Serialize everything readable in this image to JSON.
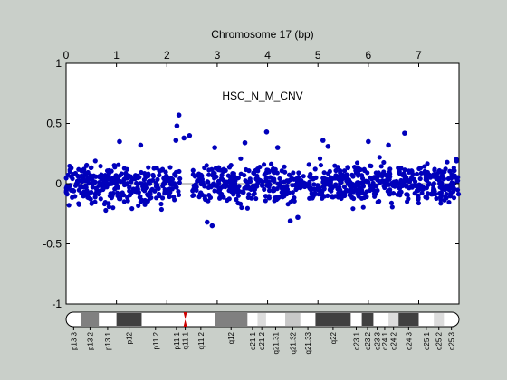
{
  "chart_data": {
    "type": "scatter",
    "title": "Chromosome 17 (bp)",
    "annotation": "HSC_N_M_CNV",
    "xlabel": "",
    "ylabel": "",
    "xlim": [
      0,
      7.8
    ],
    "ylim": [
      -1,
      1
    ],
    "x_ticks": [
      0,
      1,
      2,
      3,
      4,
      5,
      6,
      7
    ],
    "x_tick_labels": [
      "0",
      "1",
      "2",
      "3",
      "4",
      "5",
      "6",
      "7"
    ],
    "x_axis_position": "top",
    "y_ticks": [
      1,
      0.5,
      0,
      -0.5,
      -1
    ],
    "y_tick_labels": [
      "1",
      "0.5",
      "0",
      "-0.5",
      "-1"
    ],
    "grid": false,
    "legend": "none",
    "point_color": "#0000bb",
    "zero_line_color": "#8a8a8a",
    "gap_x_range": [
      2.26,
      2.5
    ],
    "noise_band": [
      -0.2,
      0.2
    ],
    "outliers": [
      {
        "x": 2.24,
        "y": 0.57
      },
      {
        "x": 2.2,
        "y": 0.48
      },
      {
        "x": 2.18,
        "y": 0.36
      },
      {
        "x": 2.34,
        "y": 0.38
      },
      {
        "x": 2.45,
        "y": 0.4
      },
      {
        "x": 1.06,
        "y": 0.35
      },
      {
        "x": 1.48,
        "y": 0.32
      },
      {
        "x": 3.55,
        "y": 0.34
      },
      {
        "x": 3.98,
        "y": 0.43
      },
      {
        "x": 4.2,
        "y": 0.3
      },
      {
        "x": 5.1,
        "y": 0.36
      },
      {
        "x": 5.2,
        "y": 0.31
      },
      {
        "x": 6.0,
        "y": 0.35
      },
      {
        "x": 6.72,
        "y": 0.42
      },
      {
        "x": 6.4,
        "y": 0.32
      },
      {
        "x": 2.9,
        "y": -0.35
      },
      {
        "x": 2.8,
        "y": -0.32
      },
      {
        "x": 4.45,
        "y": -0.31
      },
      {
        "x": 4.6,
        "y": -0.28
      },
      {
        "x": 2.95,
        "y": 0.3
      }
    ],
    "ideogram": {
      "bands": [
        {
          "name": "p13.3",
          "start": 0.0,
          "end": 0.3,
          "color": "#ffffff"
        },
        {
          "name": "p13.2",
          "start": 0.3,
          "end": 0.65,
          "color": "#808080"
        },
        {
          "name": "p13.1",
          "start": 0.65,
          "end": 1.0,
          "color": "#ffffff"
        },
        {
          "name": "p12",
          "start": 1.0,
          "end": 1.5,
          "color": "#404040"
        },
        {
          "name": "p11.2",
          "start": 1.5,
          "end": 2.05,
          "color": "#ffffff"
        },
        {
          "name": "p11.1",
          "start": 2.05,
          "end": 2.33,
          "color": "#ffffff"
        },
        {
          "name": "q11.1",
          "start": 2.33,
          "end": 2.4,
          "color": "#cc0000"
        },
        {
          "name": "q11.2",
          "start": 2.4,
          "end": 2.95,
          "color": "#ffffff"
        },
        {
          "name": "q12",
          "start": 2.95,
          "end": 3.6,
          "color": "#808080"
        },
        {
          "name": "q21.1",
          "start": 3.6,
          "end": 3.8,
          "color": "#ffffff"
        },
        {
          "name": "q21.2",
          "start": 3.8,
          "end": 3.97,
          "color": "#dcdcdc"
        },
        {
          "name": "q21.31",
          "start": 3.97,
          "end": 4.35,
          "color": "#ffffff"
        },
        {
          "name": "q21.32",
          "start": 4.35,
          "end": 4.65,
          "color": "#c8c8c8"
        },
        {
          "name": "q21.33",
          "start": 4.65,
          "end": 4.95,
          "color": "#ffffff"
        },
        {
          "name": "q22",
          "start": 4.95,
          "end": 5.65,
          "color": "#404040"
        },
        {
          "name": "q23.1",
          "start": 5.65,
          "end": 5.87,
          "color": "#ffffff"
        },
        {
          "name": "q23.2",
          "start": 5.87,
          "end": 6.1,
          "color": "#404040"
        },
        {
          "name": "q23.3",
          "start": 6.1,
          "end": 6.25,
          "color": "#ffffff"
        },
        {
          "name": "q24.1",
          "start": 6.25,
          "end": 6.4,
          "color": "#ffffff"
        },
        {
          "name": "q24.2",
          "start": 6.4,
          "end": 6.6,
          "color": "#dcdcdc"
        },
        {
          "name": "q24.3",
          "start": 6.6,
          "end": 7.0,
          "color": "#404040"
        },
        {
          "name": "q25.1",
          "start": 7.0,
          "end": 7.3,
          "color": "#ffffff"
        },
        {
          "name": "q25.2",
          "start": 7.3,
          "end": 7.5,
          "color": "#dcdcdc"
        },
        {
          "name": "q25.3",
          "start": 7.5,
          "end": 7.8,
          "color": "#ffffff"
        }
      ]
    }
  }
}
